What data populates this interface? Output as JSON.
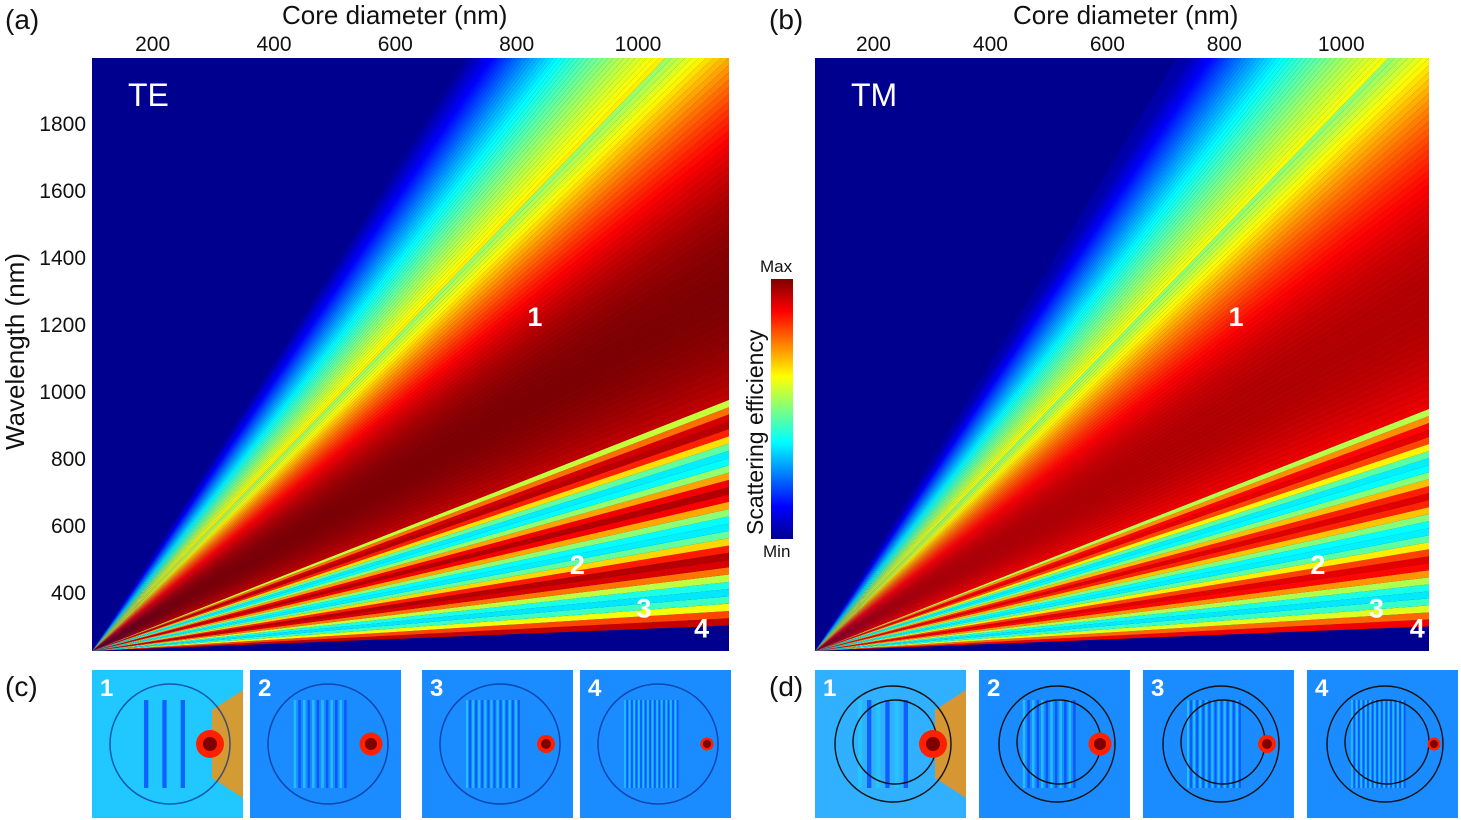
{
  "chart_data": [
    {
      "panel": "(a)",
      "type": "heatmap",
      "mode_label": "TE",
      "xlabel": "Core diameter (nm)",
      "ylabel": "Wavelength (nm)",
      "x_ticks": [
        200,
        400,
        600,
        800,
        1000
      ],
      "y_ticks": [
        400,
        600,
        800,
        1000,
        1200,
        1400,
        1600,
        1800
      ],
      "xlim": [
        100,
        1150
      ],
      "ylim": [
        230,
        2000
      ],
      "order_labels": [
        {
          "text": "1",
          "x": 830,
          "y": 1200
        },
        {
          "text": "2",
          "x": 900,
          "y": 460
        },
        {
          "text": "3",
          "x": 1010,
          "y": 330
        },
        {
          "text": "4",
          "x": 1105,
          "y": 270
        }
      ]
    },
    {
      "panel": "(b)",
      "type": "heatmap",
      "mode_label": "TM",
      "xlabel": "Core diameter (nm)",
      "x_ticks": [
        200,
        400,
        600,
        800,
        1000
      ],
      "xlim": [
        100,
        1150
      ],
      "ylim": [
        230,
        2000
      ],
      "order_labels": [
        {
          "text": "1",
          "x": 820,
          "y": 1200
        },
        {
          "text": "2",
          "x": 960,
          "y": 460
        },
        {
          "text": "3",
          "x": 1060,
          "y": 330
        },
        {
          "text": "4",
          "x": 1130,
          "y": 270
        }
      ]
    }
  ],
  "colorbar": {
    "title": "Scattering efficiency",
    "max_label": "Max",
    "min_label": "Min",
    "colormap": "jet"
  },
  "field_maps": [
    {
      "panel": "(c)",
      "polarization": "TE",
      "labels": [
        "1",
        "2",
        "3",
        "4"
      ]
    },
    {
      "panel": "(d)",
      "polarization": "TM",
      "labels": [
        "1",
        "2",
        "3",
        "4"
      ]
    }
  ]
}
